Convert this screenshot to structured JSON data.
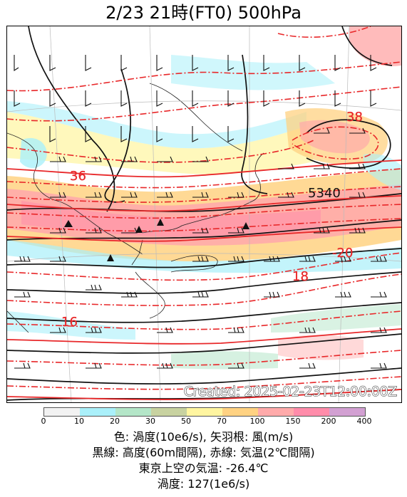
{
  "title": "2/23  21時(FT0)     500hPa",
  "map": {
    "contour_labels": {
      "height": [
        "5340"
      ],
      "temperature": [
        "36",
        "38",
        "-20",
        "18",
        "16"
      ]
    },
    "created_stamp": "Created: 2025-02-23T12:00:00Z"
  },
  "colorbar": {
    "ticks": [
      "0",
      "10",
      "20",
      "30",
      "50",
      "70",
      "100",
      "150",
      "200",
      "400"
    ],
    "colors": [
      "#f2f2f2",
      "#aaf0fa",
      "#b4e6c8",
      "#c8d2a0",
      "#fff5a0",
      "#ffd282",
      "#ffaaaa",
      "#ff8caa",
      "#d2a0d2"
    ]
  },
  "captions": {
    "line1": "色: 渦度(10e6/s), 矢羽根: 風(m/s)",
    "line2": "黒線: 高度(60m間隔), 赤線: 気温(2℃間隔)",
    "line3": "東京上空の気温: -26.4℃",
    "line4": "渦度: 127(1e6/s)"
  }
}
